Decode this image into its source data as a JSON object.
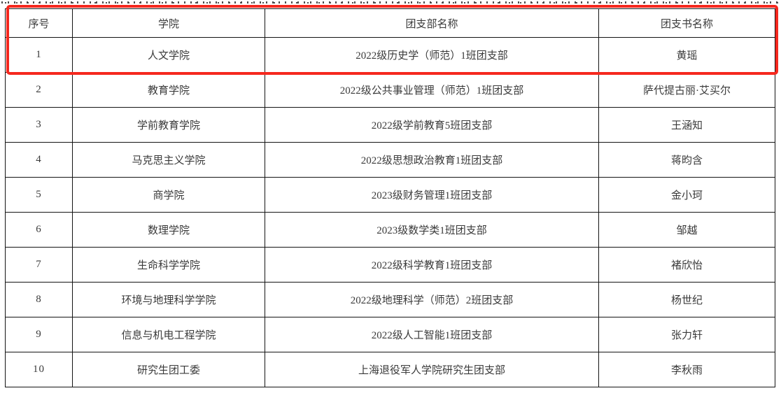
{
  "page": {
    "background_color": "#ffffff",
    "text_color": "#3a3a3a",
    "table_border_color": "#141414"
  },
  "highlight_box": {
    "color": "#f5281e",
    "covers": "header row and row 1"
  },
  "table": {
    "headers": [
      "序号",
      "学院",
      "团支部名称",
      "团支书名称"
    ],
    "rows": [
      [
        "1",
        "人文学院",
        "2022级历史学（师范）1班团支部",
        "黄瑶"
      ],
      [
        "2",
        "教育学院",
        "2022级公共事业管理（师范）1班团支部",
        "萨代提古丽·艾买尔"
      ],
      [
        "3",
        "学前教育学院",
        "2022级学前教育5班团支部",
        "王涵知"
      ],
      [
        "4",
        "马克思主义学院",
        "2022级思想政治教育1班团支部",
        "蒋昀含"
      ],
      [
        "5",
        "商学院",
        "2023级财务管理1班团支部",
        "金小珂"
      ],
      [
        "6",
        "数理学院",
        "2023级数学类1班团支部",
        "邹越"
      ],
      [
        "7",
        "生命科学学院",
        "2022级科学教育1班团支部",
        "褚欣怡"
      ],
      [
        "8",
        "环境与地理科学学院",
        "2022级地理科学（师范）2班团支部",
        "杨世纪"
      ],
      [
        "9",
        "信息与机电工程学院",
        "2022级人工智能1班团支部",
        "张力轩"
      ],
      [
        "10",
        "研究生团工委",
        "上海退役军人学院研究生团支部",
        "李秋雨"
      ]
    ]
  }
}
